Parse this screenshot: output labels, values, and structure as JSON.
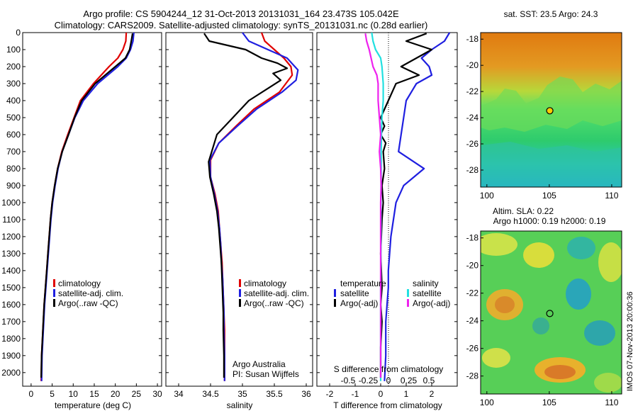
{
  "header": {
    "title_line1": "Argo profile: CS 5904244_12 31-Oct-2013 20131031_164 23.473S 105.042E",
    "title_line2": "Climatology: CARS2009. Satellite-adjusted climatology: synTS_20131031.nc (0.28d earlier)"
  },
  "colors": {
    "climatology": "#e00000",
    "satellite": "#1f1fe0",
    "argo": "#000000",
    "salinity_satellite": "#22e0e0",
    "salinity_argo": "#ee22ee"
  },
  "chart_data": [
    {
      "type": "line",
      "xlabel": "temperature (deg C)",
      "ylabel": "",
      "xlim": [
        -2,
        31
      ],
      "ylim": [
        2080,
        0
      ],
      "xticks": [
        0,
        5,
        10,
        15,
        20,
        25,
        30
      ],
      "yticks": [
        0,
        100,
        200,
        300,
        400,
        500,
        600,
        700,
        800,
        900,
        1000,
        1100,
        1200,
        1300,
        1400,
        1500,
        1600,
        1700,
        1800,
        1900,
        2000
      ],
      "legend": [
        "climatology",
        "satellite-adj. clim.",
        "Argo(..raw -QC)"
      ],
      "series": [
        {
          "name": "climatology",
          "color": "#e00000",
          "x": [
            22.6,
            22.5,
            21.8,
            20.6,
            18.5,
            14.8,
            11.7,
            10.2,
            8.7,
            7.3,
            6.3,
            5.6,
            5.0,
            4.6,
            4.3,
            4.0,
            3.7,
            3.4,
            3.1,
            2.9,
            2.7,
            2.5,
            2.4
          ],
          "y": [
            0,
            50,
            100,
            150,
            200,
            300,
            400,
            500,
            600,
            700,
            800,
            900,
            1000,
            1100,
            1200,
            1300,
            1400,
            1500,
            1600,
            1700,
            1800,
            1900,
            2050
          ]
        },
        {
          "name": "satellite-adj. clim.",
          "color": "#1f1fe0",
          "x": [
            24.4,
            24.2,
            23.6,
            22.6,
            20.6,
            15.8,
            12.4,
            10.4,
            8.9,
            7.4,
            6.4,
            5.7,
            5.1,
            4.7,
            4.4,
            4.1,
            3.8,
            3.5,
            3.2,
            3.0,
            2.8,
            2.6,
            2.5
          ],
          "y": [
            0,
            50,
            100,
            150,
            200,
            300,
            400,
            500,
            600,
            700,
            800,
            900,
            1000,
            1100,
            1200,
            1300,
            1400,
            1500,
            1600,
            1700,
            1800,
            1900,
            2050
          ]
        },
        {
          "name": "Argo(..raw -QC)",
          "color": "#000000",
          "x": [
            24.1,
            23.8,
            23.4,
            22.4,
            20.0,
            15.2,
            12.0,
            10.3,
            8.9,
            7.4,
            6.3,
            5.6,
            5.0,
            4.6,
            4.3,
            4.0,
            3.7,
            3.4,
            3.1,
            2.9,
            2.7,
            2.5,
            2.4
          ],
          "y": [
            5,
            50,
            100,
            150,
            200,
            300,
            400,
            500,
            600,
            700,
            800,
            900,
            1000,
            1100,
            1200,
            1300,
            1400,
            1500,
            1600,
            1700,
            1800,
            1900,
            2030
          ]
        }
      ]
    },
    {
      "type": "line",
      "xlabel": "salinity",
      "ylabel": "",
      "xlim": [
        33.8,
        36.1
      ],
      "ylim": [
        2080,
        0
      ],
      "xticks": [
        34,
        34.5,
        35,
        35.5,
        36
      ],
      "xtick_labels": [
        "34",
        "34.5",
        "35",
        "35.5",
        "36"
      ],
      "legend": [
        "climatology",
        "satellite-adj. clim.",
        "Argo(..raw -QC)"
      ],
      "annotation": [
        "Argo Australia",
        "PI: Susan Wijffels"
      ],
      "series": [
        {
          "name": "climatology",
          "color": "#e00000",
          "x": [
            35.3,
            35.35,
            35.5,
            35.65,
            35.76,
            35.78,
            35.58,
            35.18,
            34.9,
            34.63,
            34.5,
            34.5,
            34.57,
            34.62,
            34.64,
            34.66,
            34.68,
            34.69,
            34.7,
            34.71,
            34.72,
            34.72,
            34.72
          ],
          "y": [
            0,
            50,
            100,
            150,
            200,
            250,
            350,
            450,
            550,
            650,
            750,
            850,
            950,
            1050,
            1150,
            1250,
            1350,
            1450,
            1550,
            1650,
            1750,
            1900,
            2050
          ]
        },
        {
          "name": "satellite-adj. clim.",
          "color": "#1f1fe0",
          "x": [
            35.0,
            35.1,
            35.4,
            35.7,
            35.87,
            35.84,
            35.62,
            35.22,
            34.92,
            34.63,
            34.49,
            34.5,
            34.56,
            34.61,
            34.64,
            34.66,
            34.67,
            34.69,
            34.7,
            34.71,
            34.71,
            34.72,
            34.72
          ],
          "y": [
            0,
            50,
            100,
            150,
            220,
            280,
            350,
            450,
            550,
            650,
            750,
            850,
            950,
            1050,
            1150,
            1250,
            1350,
            1450,
            1550,
            1650,
            1750,
            1900,
            2050
          ]
        },
        {
          "name": "Argo(..raw -QC)",
          "color": "#000000",
          "x": [
            34.4,
            34.48,
            35.05,
            35.3,
            35.55,
            35.7,
            35.48,
            35.6,
            35.1,
            34.85,
            34.6,
            34.47,
            34.49,
            34.55,
            34.6,
            34.63,
            34.65,
            34.67,
            34.68,
            34.69,
            34.7,
            34.7,
            34.71,
            34.71
          ],
          "y": [
            5,
            50,
            100,
            150,
            180,
            210,
            240,
            280,
            400,
            500,
            600,
            760,
            850,
            950,
            1050,
            1150,
            1250,
            1350,
            1450,
            1550,
            1650,
            1750,
            1900,
            2030
          ]
        }
      ]
    },
    {
      "type": "line",
      "xlabel": "T difference from climatology",
      "xlabel2": "S difference from climatology",
      "ylabel": "",
      "xlim": [
        -2.5,
        3.0
      ],
      "ylim": [
        2080,
        0
      ],
      "xticks": [
        -2,
        -1,
        0,
        1,
        2
      ],
      "xtick_labels": [
        "-2",
        "-1",
        "0",
        "1",
        "2"
      ],
      "xticks_salinity": [
        -0.5,
        -0.25,
        0,
        0.25,
        0.5
      ],
      "xtick_labels_salinity": [
        "-0.5",
        "-0.25",
        "0",
        "0.25",
        "0.5"
      ],
      "legend_groups": [
        {
          "title": "temperature",
          "items": [
            "satellite",
            "Argo(-adj)"
          ]
        },
        {
          "title": "salinity",
          "items": [
            "satellite",
            "Argo(-adj)"
          ]
        }
      ],
      "series": [
        {
          "name": "temperature satellite",
          "color": "#1f1fe0",
          "x": [
            2.7,
            2.5,
            2.0,
            1.6,
            1.9,
            2.0,
            1.4,
            1.0,
            0.9,
            0.8,
            0.7,
            1.7,
            1.3,
            0.9,
            0.6,
            0.5,
            0.4,
            0.35,
            0.3,
            0.3,
            0.25,
            0.2,
            0.2,
            0.15
          ],
          "y": [
            0,
            50,
            100,
            150,
            200,
            250,
            300,
            400,
            500,
            600,
            700,
            800,
            850,
            900,
            1000,
            1100,
            1200,
            1300,
            1400,
            1500,
            1600,
            1700,
            1900,
            2050
          ]
        },
        {
          "name": "temperature Argo(-adj)",
          "color": "#000000",
          "x": [
            1.8,
            1.0,
            2.0,
            1.4,
            0.8,
            1.5,
            0.6,
            0.3,
            0.0,
            0.15,
            0.0,
            0.2,
            0.1,
            0.15,
            0.05,
            0.1,
            0.05,
            0.0,
            0.05,
            0.0,
            0.05,
            0.0,
            0.0
          ],
          "y": [
            5,
            50,
            100,
            150,
            200,
            250,
            300,
            400,
            500,
            550,
            600,
            650,
            700,
            800,
            900,
            1000,
            1100,
            1300,
            1500,
            1600,
            1700,
            1850,
            2030
          ]
        },
        {
          "name": "salinity satellite",
          "color": "#22e0e0",
          "x": [
            -0.35,
            -0.3,
            -0.2,
            0.0,
            0.05,
            0.1,
            0.1,
            0.05,
            0.03,
            0.02,
            0.02,
            0.01,
            0.01,
            0.0,
            0.0,
            0.0
          ],
          "y": [
            0,
            50,
            100,
            150,
            200,
            300,
            400,
            500,
            600,
            700,
            800,
            1000,
            1200,
            1500,
            1800,
            2050
          ]
        },
        {
          "name": "salinity Argo(-adj)",
          "color": "#ee22ee",
          "x": [
            -0.6,
            -0.55,
            -0.45,
            -0.3,
            -0.15,
            -0.1,
            -0.1,
            -0.05,
            0.0,
            -0.05,
            0.0,
            0.02,
            0.0,
            0.0,
            0.0,
            0.0
          ],
          "y": [
            5,
            50,
            100,
            200,
            250,
            300,
            400,
            500,
            600,
            700,
            800,
            900,
            1000,
            1300,
            1700,
            2030
          ]
        }
      ]
    },
    {
      "type": "heatmap",
      "title": "sat. SST: 23.5 Argo: 24.3",
      "xlim": [
        99.5,
        110.8
      ],
      "ylim": [
        -29.3,
        -17.5
      ],
      "xticks": [
        100,
        105,
        110
      ],
      "yticks": [
        -18,
        -20,
        -22,
        -24,
        -26,
        -28
      ],
      "marker": {
        "lon": 105.04,
        "lat": -23.47
      }
    },
    {
      "type": "heatmap",
      "title": "Altim. SLA: 0.22",
      "subtitle": "Argo h1000: 0.19 h2000: 0.19",
      "xlim": [
        99.5,
        110.8
      ],
      "ylim": [
        -29.3,
        -17.5
      ],
      "xticks": [
        100,
        105,
        110
      ],
      "yticks": [
        -18,
        -20,
        -22,
        -24,
        -26,
        -28
      ],
      "marker": {
        "lon": 105.04,
        "lat": -23.47
      }
    }
  ],
  "legends": {
    "temp": [
      "climatology",
      "satellite-adj. clim.",
      "Argo(..raw -QC)"
    ],
    "sal": [
      "climatology",
      "satellite-adj. clim.",
      "Argo(..raw -QC)"
    ],
    "diff_temp_title": "temperature",
    "diff_sal_title": "salinity",
    "diff_items": [
      "satellite",
      "Argo(-adj)"
    ]
  },
  "credit": "IMOS 07-Nov-2013 20:00:36"
}
